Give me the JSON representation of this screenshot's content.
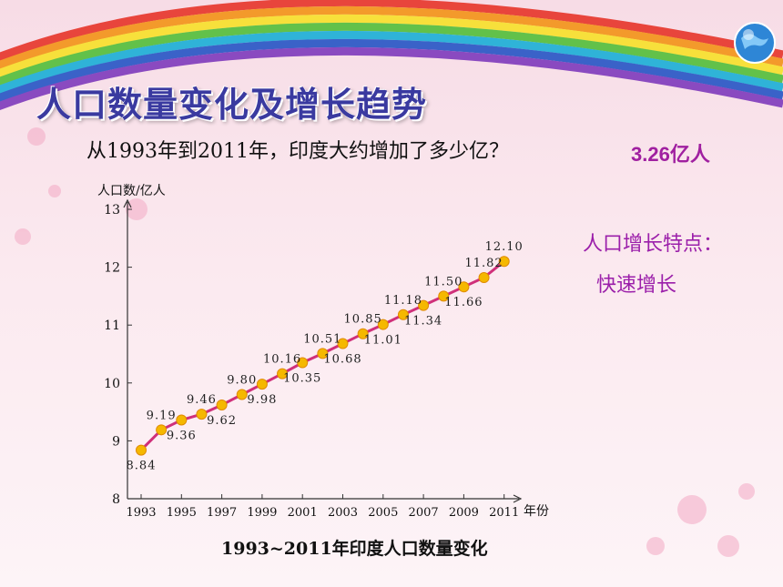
{
  "slide": {
    "title": "人口数量变化及增长趋势",
    "question": "从1993年到2011年，印度大约增加了多少亿？",
    "answer": "3.26亿人",
    "feature_label": "人口增长特点：",
    "feature_value": "快速增长",
    "caption": "1993~2011年印度人口数量变化"
  },
  "chart_data": {
    "type": "line",
    "title": "",
    "ylabel": "人口数/亿人",
    "xlabel": "年份",
    "ylim": [
      8,
      13
    ],
    "yticks": [
      8,
      9,
      10,
      11,
      12,
      13
    ],
    "xticks": [
      1993,
      1995,
      1997,
      1999,
      2001,
      2003,
      2005,
      2007,
      2009,
      2011
    ],
    "x": [
      1993,
      1994,
      1995,
      1996,
      1997,
      1998,
      1999,
      2000,
      2001,
      2002,
      2003,
      2004,
      2005,
      2006,
      2007,
      2008,
      2009,
      2010,
      2011
    ],
    "values": [
      8.84,
      9.19,
      9.36,
      9.46,
      9.62,
      9.8,
      9.98,
      10.16,
      10.35,
      10.51,
      10.68,
      10.85,
      11.01,
      11.18,
      11.34,
      11.5,
      11.66,
      11.82,
      12.1
    ],
    "labels": [
      "8.84",
      "9.19",
      "9.36",
      "9.46",
      "9.62",
      "9.80",
      "9.98",
      "10.16",
      "10.35",
      "10.51",
      "10.68",
      "10.85",
      "11.01",
      "11.18",
      "11.34",
      "11.50",
      "11.66",
      "11.82",
      "12.10"
    ],
    "label_positions": [
      "below",
      "above",
      "below",
      "above",
      "below",
      "above",
      "below",
      "above",
      "below",
      "above",
      "below",
      "above",
      "below",
      "above",
      "below",
      "above",
      "below",
      "above",
      "above"
    ],
    "line_color": "#d0307a",
    "marker_color": "#f5b800",
    "grid": false
  }
}
